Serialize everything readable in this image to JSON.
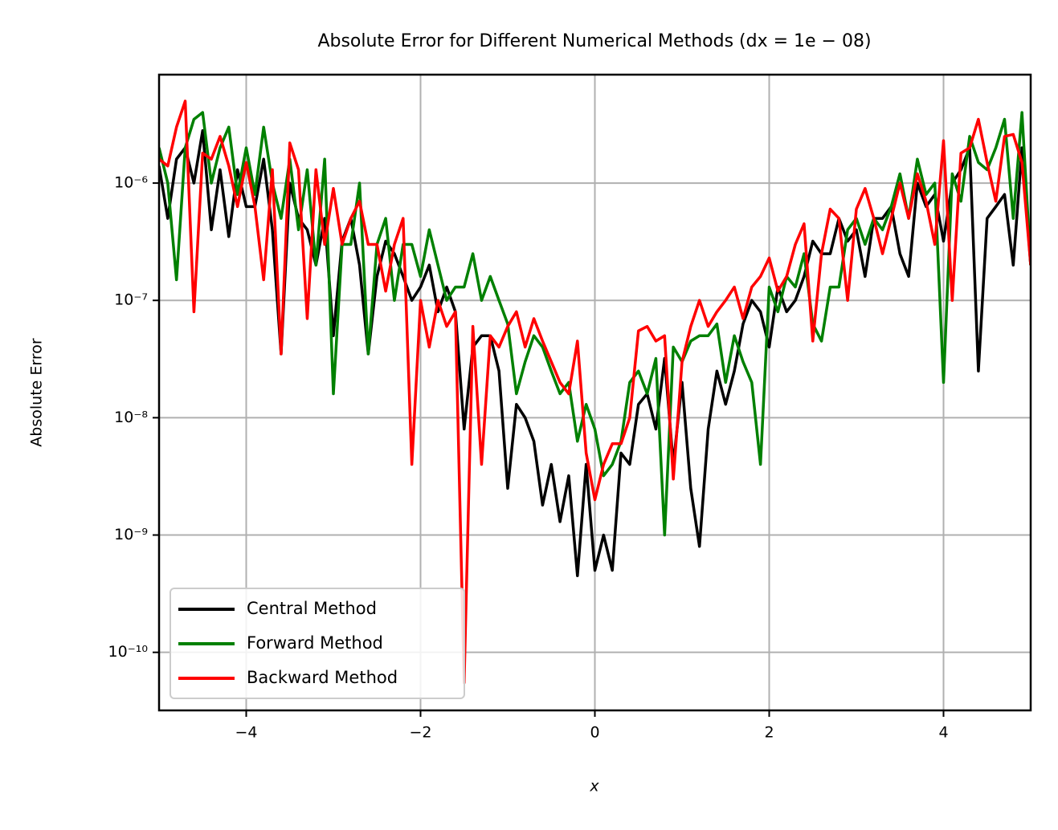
{
  "chart_data": {
    "type": "line",
    "title": "Absolute Error for Different Numerical Methods (dx = 1e − 08)",
    "x_label": "x",
    "y_label": "Absolute Error",
    "y_scale": "log",
    "grid": true,
    "legend": "lower left",
    "xlim": [
      -5,
      5
    ],
    "ylim": [
      3.2e-11,
      8.4e-06
    ],
    "xticks": [
      {
        "value": -4,
        "label": "−4"
      },
      {
        "value": -2,
        "label": "−2"
      },
      0,
      2,
      4
    ],
    "yticks": [
      {
        "value": 1e-10,
        "label": "10⁻¹⁰"
      },
      {
        "value": 1e-09,
        "label": "10⁻⁹"
      },
      {
        "value": 1e-08,
        "label": "10⁻⁸"
      },
      {
        "value": 1e-07,
        "label": "10⁻⁷"
      },
      {
        "value": 1e-06,
        "label": "10⁻⁶"
      }
    ],
    "x": [
      -5,
      -4.9,
      -4.8,
      -4.7,
      -4.6,
      -4.5,
      -4.4,
      -4.3,
      -4.2,
      -4.1,
      -4,
      -3.9,
      -3.8,
      -3.7,
      -3.6,
      -3.5,
      -3.4,
      -3.3,
      -3.2,
      -3.1,
      -3,
      -2.9,
      -2.8,
      -2.7,
      -2.6,
      -2.5,
      -2.4,
      -2.3,
      -2.2,
      -2.1,
      -2,
      -1.9,
      -1.8,
      -1.7,
      -1.6,
      -1.5,
      -1.4,
      -1.3,
      -1.2,
      -1.1,
      -1,
      -0.9,
      -0.8,
      -0.7,
      -0.6,
      -0.5,
      -0.4,
      -0.3,
      -0.2,
      -0.1,
      0,
      0.1,
      0.2,
      0.3,
      0.4,
      0.5,
      0.6,
      0.7,
      0.8,
      0.9,
      1,
      1.1,
      1.2,
      1.3,
      1.4,
      1.5,
      1.6,
      1.7,
      1.8,
      1.9,
      2,
      2.1,
      2.2,
      2.3,
      2.4,
      2.5,
      2.6,
      2.7,
      2.8,
      2.9,
      3,
      3.1,
      3.2,
      3.3,
      3.4,
      3.5,
      3.6,
      3.7,
      3.8,
      3.9,
      4,
      4.1,
      4.2,
      4.3,
      4.4,
      4.5,
      4.6,
      4.7,
      4.8,
      4.9,
      5
    ],
    "series": [
      {
        "name": "Central Method",
        "color": "#000000",
        "values": [
          1.4e-06,
          5e-07,
          1.6e-06,
          2e-06,
          1e-06,
          2.8e-06,
          4e-07,
          1.3e-06,
          3.5e-07,
          1.3e-06,
          6.3e-07,
          6.3e-07,
          1.6e-06,
          4e-07,
          3.5e-08,
          1e-06,
          5e-07,
          4e-07,
          2e-07,
          5e-07,
          5e-08,
          3.2e-07,
          5e-07,
          2e-07,
          3.5e-08,
          1.6e-07,
          3.2e-07,
          2.5e-07,
          1.6e-07,
          1e-07,
          1.3e-07,
          2e-07,
          8e-08,
          1.3e-07,
          8e-08,
          8e-09,
          4e-08,
          5e-08,
          5e-08,
          2.5e-08,
          2.5e-09,
          1.3e-08,
          1e-08,
          6.3e-09,
          1.8e-09,
          4e-09,
          1.3e-09,
          3.2e-09,
          4.5e-10,
          4e-09,
          5e-10,
          1e-09,
          5e-10,
          5e-09,
          4e-09,
          1.3e-08,
          1.6e-08,
          8e-09,
          3.2e-08,
          4e-09,
          2e-08,
          2.5e-09,
          8e-10,
          8e-09,
          2.5e-08,
          1.3e-08,
          2.5e-08,
          6.3e-08,
          1e-07,
          8e-08,
          4e-08,
          1.3e-07,
          8e-08,
          1e-07,
          1.6e-07,
          3.2e-07,
          2.5e-07,
          2.5e-07,
          5e-07,
          3.2e-07,
          4e-07,
          1.6e-07,
          5e-07,
          5e-07,
          6.3e-07,
          2.5e-07,
          1.6e-07,
          1e-06,
          6.3e-07,
          8e-07,
          3.2e-07,
          1e-06,
          1.3e-06,
          2e-06,
          2.5e-08,
          5e-07,
          6.3e-07,
          8e-07,
          2e-07,
          2e-06,
          2e-07
        ]
      },
      {
        "name": "Forward Method",
        "color": "#008000",
        "values": [
          2e-06,
          1e-06,
          1.5e-07,
          2e-06,
          3.5e-06,
          4e-06,
          1e-06,
          2e-06,
          3e-06,
          8e-07,
          2e-06,
          8e-07,
          3e-06,
          1e-06,
          5e-07,
          1.6e-06,
          4e-07,
          1.3e-06,
          2e-07,
          1.6e-06,
          1.6e-08,
          3e-07,
          3e-07,
          1e-06,
          3.5e-08,
          3e-07,
          5e-07,
          1e-07,
          3e-07,
          3e-07,
          1.6e-07,
          4e-07,
          2e-07,
          1e-07,
          1.3e-07,
          1.3e-07,
          2.5e-07,
          1e-07,
          1.6e-07,
          1e-07,
          6.3e-08,
          1.6e-08,
          3e-08,
          5e-08,
          4e-08,
          2.5e-08,
          1.6e-08,
          2e-08,
          6.3e-09,
          1.3e-08,
          8e-09,
          3.2e-09,
          4e-09,
          6.3e-09,
          2e-08,
          2.5e-08,
          1.6e-08,
          3.2e-08,
          1e-09,
          4e-08,
          3e-08,
          4.5e-08,
          5e-08,
          5e-08,
          6.3e-08,
          2e-08,
          5e-08,
          3e-08,
          2e-08,
          4e-09,
          1.3e-07,
          8e-08,
          1.6e-07,
          1.3e-07,
          2.5e-07,
          6.3e-08,
          4.5e-08,
          1.3e-07,
          1.3e-07,
          4e-07,
          5e-07,
          3e-07,
          5e-07,
          4e-07,
          6.3e-07,
          1.2e-06,
          5e-07,
          1.6e-06,
          8e-07,
          1e-06,
          2e-08,
          1.2e-06,
          7e-07,
          2.5e-06,
          1.5e-06,
          1.3e-06,
          2e-06,
          3.5e-06,
          5e-07,
          4e-06,
          2e-07
        ]
      },
      {
        "name": "Backward Method",
        "color": "#ff0000",
        "values": [
          1.6e-06,
          1.4e-06,
          3e-06,
          5e-06,
          8e-08,
          1.8e-06,
          1.6e-06,
          2.5e-06,
          1.4e-06,
          6.3e-07,
          1.5e-06,
          6.3e-07,
          1.5e-07,
          1.3e-06,
          3.5e-08,
          2.2e-06,
          1.3e-06,
          7e-08,
          1.3e-06,
          3e-07,
          9e-07,
          3e-07,
          5e-07,
          7e-07,
          3e-07,
          3e-07,
          1.2e-07,
          3e-07,
          5e-07,
          4e-09,
          1e-07,
          4e-08,
          1e-07,
          6e-08,
          8e-08,
          5.5e-11,
          6e-08,
          4e-09,
          5e-08,
          4e-08,
          6e-08,
          8e-08,
          4e-08,
          7e-08,
          4.5e-08,
          3e-08,
          2e-08,
          1.6e-08,
          4.5e-08,
          5e-09,
          2e-09,
          4e-09,
          6e-09,
          6e-09,
          1e-08,
          5.5e-08,
          6e-08,
          4.5e-08,
          5e-08,
          3e-09,
          3e-08,
          6e-08,
          1e-07,
          6e-08,
          8e-08,
          1e-07,
          1.3e-07,
          7e-08,
          1.3e-07,
          1.6e-07,
          2.3e-07,
          1.2e-07,
          1.6e-07,
          3e-07,
          4.5e-07,
          4.5e-08,
          2.5e-07,
          6e-07,
          5e-07,
          1e-07,
          6e-07,
          9e-07,
          5e-07,
          2.5e-07,
          5e-07,
          1e-06,
          5e-07,
          1.2e-06,
          7e-07,
          3e-07,
          2.3e-06,
          1e-07,
          1.8e-06,
          2e-06,
          3.5e-06,
          1.5e-06,
          7e-07,
          2.5e-06,
          2.6e-06,
          1.5e-06,
          2e-07
        ]
      }
    ]
  }
}
